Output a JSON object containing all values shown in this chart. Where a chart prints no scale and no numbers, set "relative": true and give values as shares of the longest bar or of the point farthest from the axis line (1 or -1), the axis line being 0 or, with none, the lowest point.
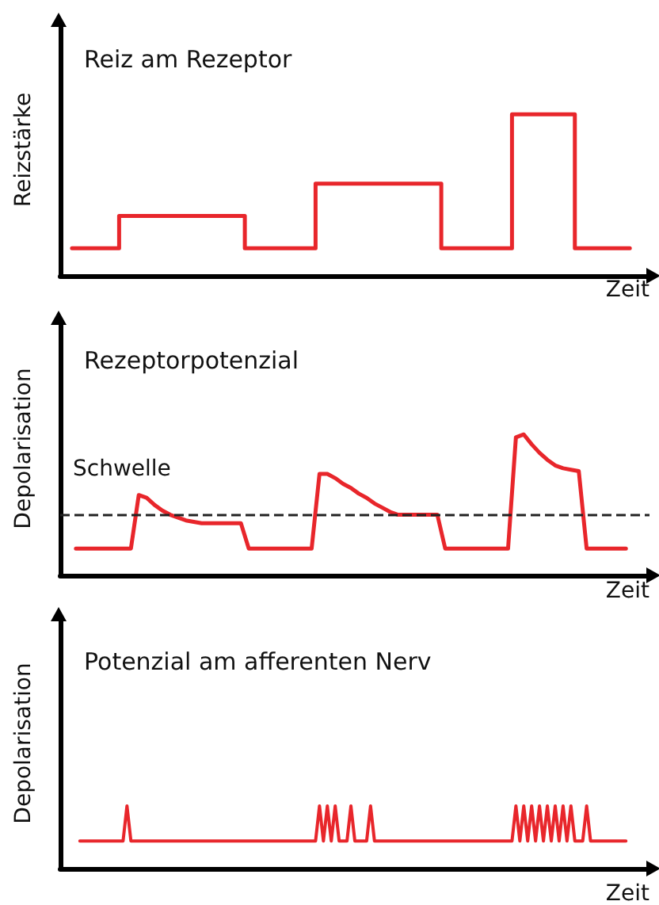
{
  "chart_data": [
    {
      "type": "step",
      "title": "Reiz am Rezeptor",
      "xlabel": "Zeit",
      "ylabel": "Reizstärke",
      "relative": true,
      "marker": "none",
      "categories": [
        null,
        null,
        null,
        null,
        null,
        null,
        null,
        null,
        null,
        null,
        null,
        null,
        null,
        null,
        null,
        null,
        null,
        null,
        null,
        null,
        null,
        null,
        null,
        null,
        null,
        null,
        null,
        null,
        null,
        null,
        null,
        null,
        null,
        null,
        null,
        null,
        null,
        null,
        null,
        null,
        null,
        null,
        null,
        null,
        null,
        null,
        null,
        null,
        null,
        null,
        null,
        null,
        null,
        null,
        null,
        null,
        null,
        null,
        null,
        null,
        null,
        null,
        null,
        null,
        null,
        null,
        null,
        null,
        null,
        null,
        null,
        null,
        null,
        null,
        null,
        null
      ],
      "series": [
        {
          "color": "#e8262b",
          "values": [
            null,
            null,
            0.17,
            0.17,
            0.17,
            0.17,
            0.17,
            0.17,
            0.37,
            0.37,
            0.37,
            0.37,
            0.37,
            0.37,
            0.37,
            0.37,
            0.37,
            0.37,
            0.37,
            0.37,
            0.37,
            0.37,
            0.37,
            0.37,
            0.17,
            0.17,
            0.17,
            0.17,
            0.17,
            0.17,
            0.17,
            0.17,
            0.17,
            0.57,
            0.57,
            0.57,
            0.57,
            0.57,
            0.57,
            0.57,
            0.57,
            0.57,
            0.57,
            0.57,
            0.57,
            0.57,
            0.57,
            0.57,
            0.57,
            0.17,
            0.17,
            0.17,
            0.17,
            0.17,
            0.17,
            0.17,
            0.17,
            0.17,
            1,
            1,
            1,
            1,
            1,
            1,
            1,
            1,
            0.17,
            0.17,
            0.17,
            0.17,
            0.17,
            0.17,
            0.17,
            null,
            null,
            null
          ]
        }
      ]
    },
    {
      "type": "line",
      "title": "Rezeptorpotenzial",
      "xlabel": "Zeit",
      "ylabel": "Depolarisation",
      "relative": true,
      "marker": "none",
      "categories": [
        null,
        null,
        null,
        null,
        null,
        null,
        null,
        null,
        null,
        null,
        null,
        null,
        null,
        null,
        null,
        null,
        null,
        null,
        null,
        null,
        null,
        null,
        null,
        null,
        null,
        null,
        null,
        null,
        null,
        null,
        null,
        null,
        null,
        null,
        null,
        null,
        null,
        null,
        null,
        null,
        null,
        null,
        null,
        null,
        null,
        null,
        null,
        null,
        null,
        null,
        null,
        null,
        null,
        null,
        null,
        null,
        null,
        null,
        null,
        null,
        null,
        null,
        null,
        null,
        null,
        null,
        null,
        null,
        null,
        null,
        null,
        null,
        null,
        null,
        null,
        null
      ],
      "series": [
        {
          "color": "#e8262b",
          "values": [
            null,
            null,
            0.19,
            0.19,
            0.19,
            0.19,
            0.19,
            0.19,
            0.19,
            0.19,
            0.57,
            0.55,
            0.5,
            0.46,
            0.43,
            0.41,
            0.39,
            0.38,
            0.37,
            0.37,
            0.37,
            0.37,
            0.37,
            0.37,
            0.19,
            0.19,
            0.19,
            0.19,
            0.19,
            0.19,
            0.19,
            0.19,
            0.19,
            0.72,
            0.72,
            0.69,
            0.65,
            0.62,
            0.58,
            0.55,
            0.51,
            0.48,
            0.45,
            0.43,
            0.43,
            0.43,
            0.43,
            0.43,
            0.43,
            0.19,
            0.19,
            0.19,
            0.19,
            0.19,
            0.19,
            0.19,
            0.19,
            0.19,
            0.98,
            1,
            0.93,
            0.87,
            0.82,
            0.78,
            0.76,
            0.75,
            0.74,
            0.19,
            0.19,
            0.19,
            0.19,
            0.19,
            0.19,
            null,
            null,
            null
          ]
        }
      ],
      "ref_lines": [
        {
          "axis": "y",
          "value": 0.43,
          "label": "Schwelle",
          "color": "#222222",
          "line_style": "dashed"
        }
      ]
    },
    {
      "type": "line",
      "title": "Potenzial am afferenten Nerv",
      "xlabel": "Zeit",
      "ylabel": "Depolarisation",
      "relative": true,
      "marker": "none",
      "categories": [
        null,
        null,
        null,
        null,
        null,
        null,
        null,
        null,
        null,
        null,
        null,
        null,
        null,
        null,
        null,
        null,
        null,
        null,
        null,
        null,
        null,
        null,
        null,
        null,
        null,
        null,
        null,
        null,
        null,
        null,
        null,
        null,
        null,
        null,
        null,
        null,
        null,
        null,
        null,
        null,
        null,
        null,
        null,
        null,
        null,
        null,
        null,
        null,
        null,
        null,
        null,
        null,
        null,
        null,
        null,
        null,
        null,
        null,
        null,
        null,
        null,
        null,
        null,
        null,
        null,
        null,
        null,
        null,
        null,
        null,
        null,
        null,
        null,
        null,
        null,
        null,
        null,
        null,
        null,
        null,
        null,
        null,
        null,
        null,
        null,
        null,
        null,
        null,
        null,
        null,
        null,
        null,
        null,
        null,
        null,
        null,
        null,
        null,
        null,
        null,
        null,
        null,
        null,
        null,
        null,
        null,
        null,
        null,
        null,
        null,
        null,
        null,
        null,
        null,
        null,
        null,
        null,
        null,
        null,
        null,
        null,
        null,
        null,
        null,
        null,
        null,
        null,
        null,
        null,
        null,
        null,
        null,
        null,
        null,
        null,
        null,
        null,
        null,
        null,
        null,
        null,
        null,
        null,
        null,
        null,
        null,
        null,
        null,
        null,
        null,
        null
      ],
      "series": [
        {
          "color": "#e8262b",
          "values": [
            null,
            null,
            null,
            null,
            null,
            0.44,
            0.44,
            0.44,
            0.44,
            0.44,
            0.44,
            0.44,
            0.44,
            0.44,
            0.44,
            0.44,
            0.44,
            1,
            0.44,
            0.44,
            0.44,
            0.44,
            0.44,
            0.44,
            0.44,
            0.44,
            0.44,
            0.44,
            0.44,
            0.44,
            0.44,
            0.44,
            0.44,
            0.44,
            0.44,
            0.44,
            0.44,
            0.44,
            0.44,
            0.44,
            0.44,
            0.44,
            0.44,
            0.44,
            0.44,
            0.44,
            0.44,
            0.44,
            0.44,
            0.44,
            0.44,
            0.44,
            0.44,
            0.44,
            0.44,
            0.44,
            0.44,
            0.44,
            0.44,
            0.44,
            0.44,
            0.44,
            0.44,
            0.44,
            0.44,
            0.44,
            1,
            0.44,
            1,
            0.44,
            1,
            0.44,
            0.44,
            0.44,
            1,
            0.44,
            0.44,
            0.44,
            0.44,
            1,
            0.44,
            0.44,
            0.44,
            0.44,
            0.44,
            0.44,
            0.44,
            0.44,
            0.44,
            0.44,
            0.44,
            0.44,
            0.44,
            0.44,
            0.44,
            0.44,
            0.44,
            0.44,
            0.44,
            0.44,
            0.44,
            0.44,
            0.44,
            0.44,
            0.44,
            0.44,
            0.44,
            0.44,
            0.44,
            0.44,
            0.44,
            0.44,
            0.44,
            0.44,
            0.44,
            0.44,
            1,
            0.44,
            1,
            0.44,
            1,
            0.44,
            1,
            0.44,
            1,
            0.44,
            1,
            0.44,
            1,
            0.44,
            1,
            0.44,
            0.44,
            0.44,
            1,
            0.44,
            0.44,
            0.44,
            0.44,
            0.44,
            0.44,
            0.44,
            0.44,
            0.44,
            0.44,
            null,
            null,
            null,
            null,
            null,
            null
          ]
        }
      ]
    }
  ]
}
